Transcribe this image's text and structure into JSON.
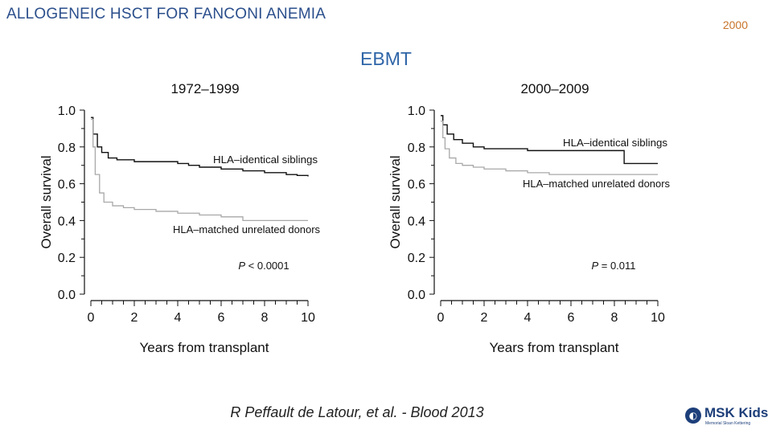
{
  "slide": {
    "title": "ALLOGENEIC HSCT FOR FANCONI ANEMIA",
    "year": "2000",
    "subtitle": "EBMT",
    "citation": "R Peffault de Latour, et al. - Blood 2013"
  },
  "logo": {
    "name": "MSK Kids",
    "tagline": "Memorial Sloan Kettering"
  },
  "colors": {
    "title": "#2b4f8c",
    "year": "#c8742a",
    "subtitle": "#2f65a8",
    "series_dark": "#111111",
    "series_light": "#a8a8a8"
  },
  "chart_data": [
    {
      "type": "line",
      "title": "1972–1999",
      "xlabel": "Years from transplant",
      "ylabel": "Overall survival",
      "xlim": [
        0,
        10
      ],
      "ylim": [
        0,
        1
      ],
      "xticks": [
        0,
        2,
        4,
        6,
        8,
        10
      ],
      "yticks": [
        "0.0",
        "0.2",
        "0.4",
        "0.6",
        "0.8",
        "1.0"
      ],
      "annotation": "P < 0.0001",
      "series": [
        {
          "name": "HLA–identical siblings",
          "color": "dark",
          "x": [
            0,
            0.1,
            0.3,
            0.5,
            0.8,
            1.2,
            2,
            3,
            4,
            4.5,
            5,
            6,
            7,
            8,
            9,
            9.5,
            10
          ],
          "y": [
            0.96,
            0.87,
            0.8,
            0.77,
            0.74,
            0.73,
            0.72,
            0.72,
            0.71,
            0.7,
            0.69,
            0.68,
            0.67,
            0.66,
            0.65,
            0.645,
            0.64
          ]
        },
        {
          "name": "HLA–matched unrelated donors",
          "color": "light",
          "x": [
            0,
            0.1,
            0.2,
            0.4,
            0.6,
            1,
            1.5,
            2,
            3,
            4,
            5,
            6,
            7,
            8,
            10
          ],
          "y": [
            0.95,
            0.8,
            0.65,
            0.55,
            0.5,
            0.48,
            0.47,
            0.46,
            0.45,
            0.44,
            0.43,
            0.42,
            0.4,
            0.4,
            0.4
          ]
        }
      ]
    },
    {
      "type": "line",
      "title": "2000–2009",
      "xlabel": "Years from transplant",
      "ylabel": "Overall survival",
      "xlim": [
        0,
        10
      ],
      "ylim": [
        0,
        1
      ],
      "xticks": [
        0,
        2,
        4,
        6,
        8,
        10
      ],
      "yticks": [
        "0.0",
        "0.2",
        "0.4",
        "0.6",
        "0.8",
        "1.0"
      ],
      "annotation": "P = 0.011",
      "series": [
        {
          "name": "HLA–identical siblings",
          "color": "dark",
          "x": [
            0,
            0.1,
            0.3,
            0.6,
            1,
            1.5,
            2,
            3,
            4,
            5,
            6,
            7,
            8,
            8.4,
            8.45,
            10
          ],
          "y": [
            0.97,
            0.92,
            0.87,
            0.84,
            0.82,
            0.8,
            0.79,
            0.79,
            0.78,
            0.78,
            0.78,
            0.78,
            0.78,
            0.78,
            0.71,
            0.71
          ]
        },
        {
          "name": "HLA–matched unrelated donors",
          "color": "light",
          "x": [
            0,
            0.1,
            0.2,
            0.4,
            0.7,
            1,
            1.5,
            2,
            3,
            4,
            5,
            10
          ],
          "y": [
            0.94,
            0.85,
            0.79,
            0.74,
            0.71,
            0.7,
            0.69,
            0.68,
            0.67,
            0.66,
            0.65,
            0.65
          ]
        }
      ]
    }
  ]
}
